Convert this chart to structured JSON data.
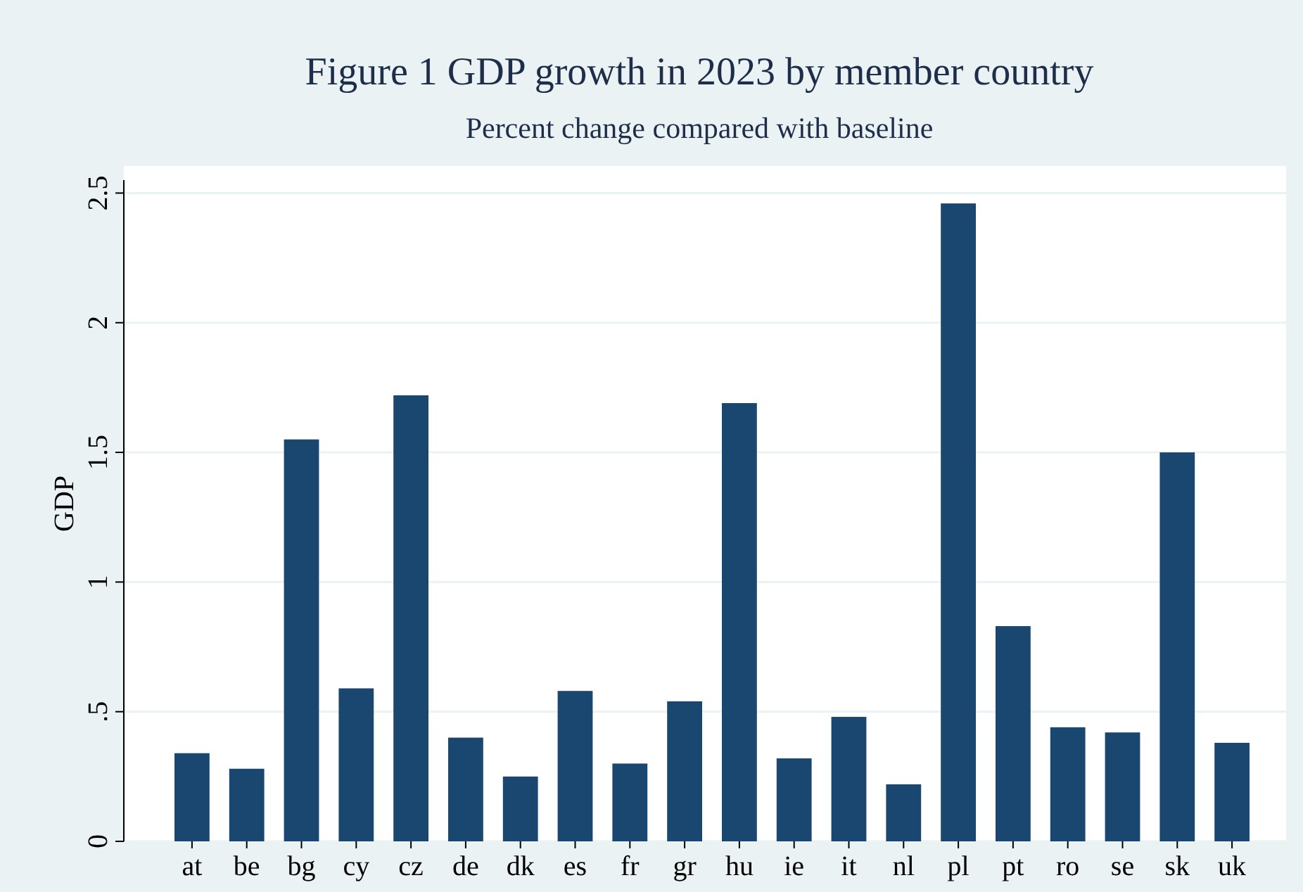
{
  "chart_data": {
    "type": "bar",
    "title": "Figure 1 GDP growth in 2023 by member country",
    "subtitle": "Percent change compared with baseline",
    "ylabel": "GDP",
    "categories": [
      "at",
      "be",
      "bg",
      "cy",
      "cz",
      "de",
      "dk",
      "es",
      "fr",
      "gr",
      "hu",
      "ie",
      "it",
      "nl",
      "pl",
      "pt",
      "ro",
      "se",
      "sk",
      "uk"
    ],
    "values": [
      0.34,
      0.28,
      1.55,
      0.59,
      1.72,
      0.4,
      0.25,
      0.58,
      0.3,
      0.54,
      1.69,
      0.32,
      0.48,
      0.22,
      2.46,
      0.83,
      0.44,
      0.42,
      1.5,
      0.38
    ],
    "color": "#1a476f",
    "ylim": [
      0,
      2.55
    ],
    "yticks": [
      0,
      {
        "value": 0.5,
        "label": ".5"
      },
      1,
      1.5,
      2,
      2.5
    ],
    "grid": "y"
  }
}
